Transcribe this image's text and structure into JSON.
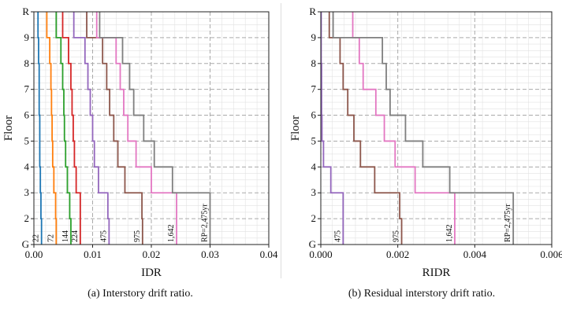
{
  "captions": {
    "left": "(a) Interstory drift ratio.",
    "right": "(b) Residual interstory drift ratio."
  },
  "floors": [
    "G",
    "2",
    "3",
    "4",
    "5",
    "6",
    "7",
    "8",
    "9",
    "R"
  ],
  "chart_data": [
    {
      "type": "line",
      "xlabel": "IDR",
      "ylabel": "Floor",
      "xlim": [
        0,
        0.04
      ],
      "xticks": [
        "0.00",
        "0.01",
        "0.02",
        "0.03",
        "0.04"
      ],
      "grid": true,
      "series": [
        {
          "name": "22",
          "color": "#1f77b4",
          "values": [
            0.0013,
            0.0012,
            0.0011,
            0.001,
            0.001,
            0.0009,
            0.0009,
            0.0008,
            0.0007
          ]
        },
        {
          "name": "72",
          "color": "#ff7f0e",
          "values": [
            0.0038,
            0.0037,
            0.0034,
            0.0032,
            0.0031,
            0.003,
            0.0029,
            0.0027,
            0.0022
          ]
        },
        {
          "name": "144",
          "color": "#2ca02c",
          "values": [
            0.0063,
            0.0061,
            0.0057,
            0.0054,
            0.0052,
            0.0051,
            0.0049,
            0.0046,
            0.0038
          ]
        },
        {
          "name": "224",
          "color": "#d62728",
          "values": [
            0.0079,
            0.0079,
            0.0072,
            0.0069,
            0.0067,
            0.0065,
            0.0063,
            0.0059,
            0.0049
          ]
        },
        {
          "name": "475",
          "color": "#9467bd",
          "values": [
            0.0128,
            0.0126,
            0.011,
            0.0103,
            0.01,
            0.0096,
            0.0092,
            0.0087,
            0.0068
          ]
        },
        {
          "name": "975",
          "color": "#8c564b",
          "values": [
            0.0185,
            0.0184,
            0.0155,
            0.0143,
            0.0136,
            0.0129,
            0.0124,
            0.0117,
            0.009
          ]
        },
        {
          "name": "1,642",
          "color": "#e377c2",
          "values": [
            0.0243,
            0.0243,
            0.02,
            0.0174,
            0.016,
            0.0153,
            0.0147,
            0.014,
            0.0107
          ]
        },
        {
          "name": "RP=2,475yr",
          "color": "#7f7f7f",
          "values": [
            0.03,
            0.03,
            0.0236,
            0.0205,
            0.0187,
            0.017,
            0.0163,
            0.0151,
            0.0112
          ]
        }
      ]
    },
    {
      "type": "line",
      "xlabel": "RIDR",
      "ylabel": "Floor",
      "xlim": [
        0,
        0.006
      ],
      "xticks": [
        "0.000",
        "0.002",
        "0.004",
        "0.006"
      ],
      "grid": true,
      "series": [
        {
          "name": "475",
          "color": "#9467bd",
          "values": [
            0.00058,
            0.00058,
            0.00026,
            7e-05,
            3e-05,
            2e-05,
            2e-05,
            1e-05,
            1e-05
          ]
        },
        {
          "name": "975",
          "color": "#8c564b",
          "values": [
            0.0021,
            0.00205,
            0.0014,
            0.00103,
            0.00086,
            0.0007,
            0.00058,
            0.0005,
            0.00022
          ]
        },
        {
          "name": "1,642",
          "color": "#e377c2",
          "values": [
            0.00348,
            0.00348,
            0.00245,
            0.00193,
            0.00165,
            0.00143,
            0.0011,
            0.001,
            0.00083
          ]
        },
        {
          "name": "RP=2,475yr",
          "color": "#7f7f7f",
          "values": [
            0.005,
            0.005,
            0.00335,
            0.00265,
            0.0022,
            0.0018,
            0.0017,
            0.0016,
            0.00032
          ]
        }
      ]
    }
  ]
}
